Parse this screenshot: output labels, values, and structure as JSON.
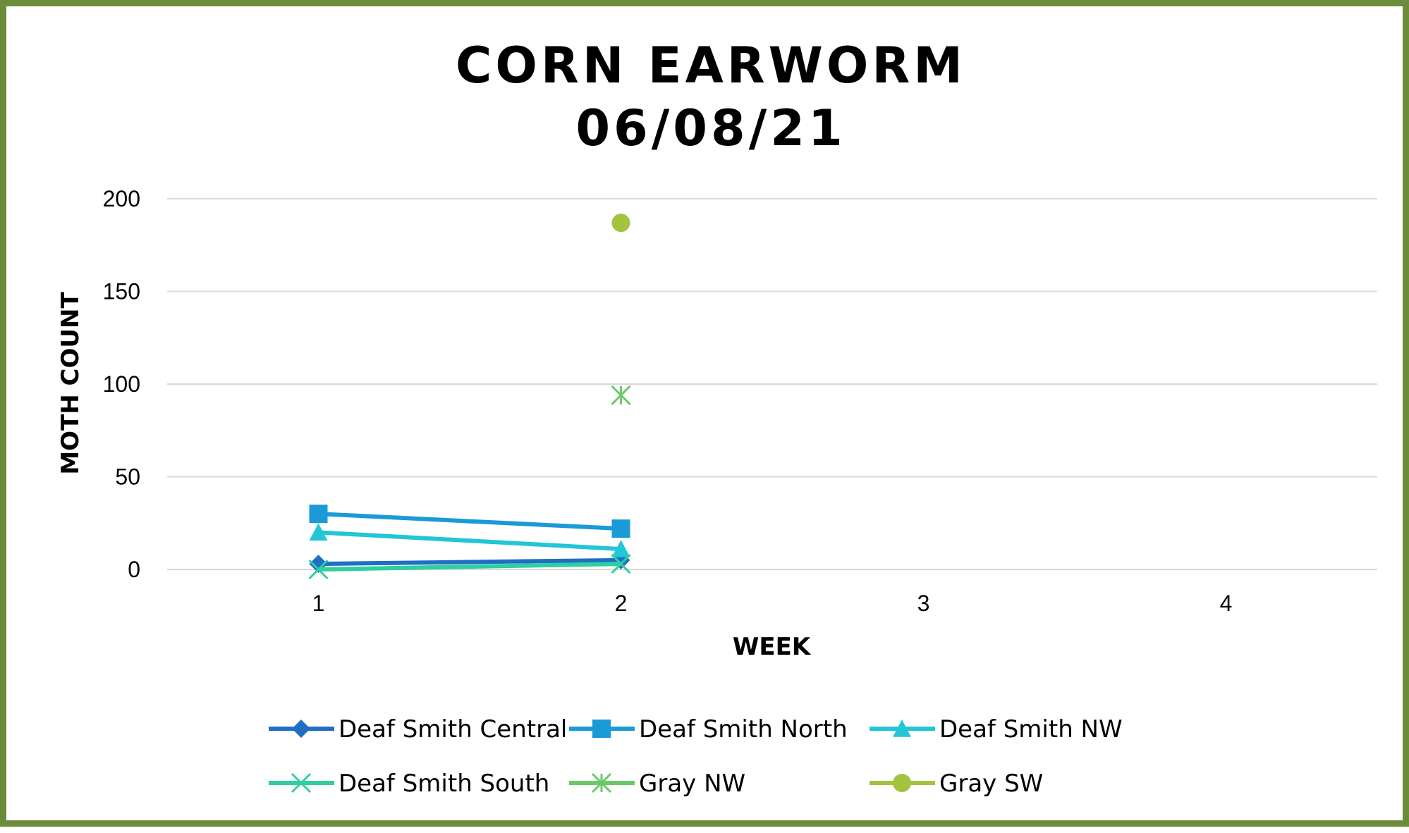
{
  "chart_data": {
    "type": "line",
    "title_lines": [
      "CORN EARWORM",
      "06/08/21"
    ],
    "xlabel": "WEEK",
    "ylabel": "MOTH COUNT",
    "categories": [
      "1",
      "2",
      "3",
      "4"
    ],
    "y_ticks": [
      "0",
      "50",
      "100",
      "150",
      "200"
    ],
    "ylim": [
      0,
      200
    ],
    "grid": true,
    "legend_position": "bottom",
    "series": [
      {
        "name": "Deaf Smith Central",
        "values": [
          3,
          5,
          null,
          null
        ],
        "color": "#1f6fc4",
        "marker": "diamond"
      },
      {
        "name": "Deaf Smith North",
        "values": [
          30,
          22,
          null,
          null
        ],
        "color": "#1a9ad6",
        "marker": "square"
      },
      {
        "name": "Deaf Smith NW",
        "values": [
          20,
          11,
          null,
          null
        ],
        "color": "#22c6d6",
        "marker": "triangle"
      },
      {
        "name": "Deaf Smith South",
        "values": [
          0,
          3,
          null,
          null
        ],
        "color": "#2ecfa0",
        "marker": "x"
      },
      {
        "name": "Gray NW",
        "values": [
          null,
          94,
          null,
          null
        ],
        "color": "#6cc96a",
        "marker": "star"
      },
      {
        "name": "Gray SW",
        "values": [
          null,
          187,
          null,
          null
        ],
        "color": "#a3c43f",
        "marker": "circle"
      }
    ]
  }
}
